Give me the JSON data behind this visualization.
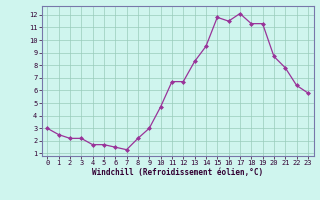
{
  "x": [
    0,
    1,
    2,
    3,
    4,
    5,
    6,
    7,
    8,
    9,
    10,
    11,
    12,
    13,
    14,
    15,
    16,
    17,
    18,
    19,
    20,
    21,
    22,
    23
  ],
  "y": [
    3.0,
    2.5,
    2.2,
    2.2,
    1.7,
    1.7,
    1.5,
    1.3,
    2.2,
    3.0,
    4.7,
    6.7,
    6.7,
    8.3,
    9.5,
    11.8,
    11.5,
    12.1,
    11.3,
    11.3,
    8.7,
    7.8,
    6.4,
    5.8
  ],
  "line_color": "#993399",
  "marker": "D",
  "marker_size": 2.0,
  "xlim": [
    -0.5,
    23.5
  ],
  "ylim": [
    0.8,
    12.7
  ],
  "yticks": [
    1,
    2,
    3,
    4,
    5,
    6,
    7,
    8,
    9,
    10,
    11,
    12
  ],
  "xticks": [
    0,
    1,
    2,
    3,
    4,
    5,
    6,
    7,
    8,
    9,
    10,
    11,
    12,
    13,
    14,
    15,
    16,
    17,
    18,
    19,
    20,
    21,
    22,
    23
  ],
  "xlabel": "Windchill (Refroidissement éolien,°C)",
  "bg_color": "#cff5ee",
  "grid_color": "#99ccbb",
  "border_color": "#7777aa"
}
